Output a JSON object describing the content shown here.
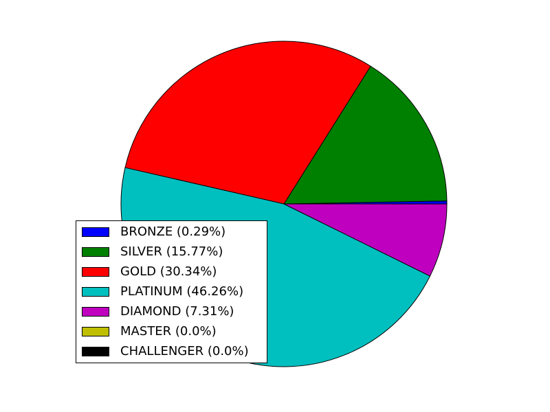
{
  "chart_data": {
    "type": "pie",
    "title": "",
    "slices": [
      {
        "label": "BRONZE (0.29%)",
        "value": 0.29,
        "color": "#0000ff"
      },
      {
        "label": "SILVER (15.77%)",
        "value": 15.77,
        "color": "#008000"
      },
      {
        "label": "GOLD (30.34%)",
        "value": 30.34,
        "color": "#ff0000"
      },
      {
        "label": "PLATINUM (46.26%)",
        "value": 46.26,
        "color": "#00bfbf"
      },
      {
        "label": "DIAMOND (7.31%)",
        "value": 7.31,
        "color": "#bf00bf"
      },
      {
        "label": "MASTER (0.0%)",
        "value": 0.0,
        "color": "#bfbf00"
      },
      {
        "label": "CHALLENGER (0.0%)",
        "value": 0.0,
        "color": "#000000"
      }
    ],
    "start_angle_deg": 0,
    "direction": "counterclockwise",
    "legend_position": "lower-left"
  }
}
